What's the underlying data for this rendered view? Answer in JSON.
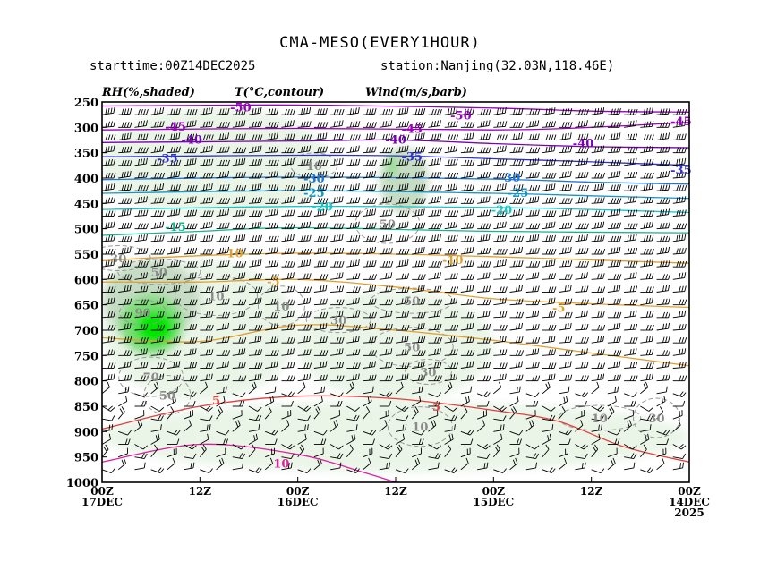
{
  "header": {
    "title": "CMA-MESO(EVERY1HOUR)",
    "starttime": "starttime:00Z14DEC2025",
    "station": "station:Nanjing(32.03N,118.46E)",
    "rh_label": "RH(%,shaded)",
    "t_label": "T(°C,contour)",
    "wind_label": "Wind(m/s,barb)"
  },
  "chart_data": {
    "type": "heatmap",
    "title": "CMA-MESO(EVERY1HOUR)",
    "y_axis": {
      "label": "",
      "ticks": [
        250,
        300,
        350,
        400,
        450,
        500,
        550,
        600,
        650,
        700,
        750,
        800,
        850,
        900,
        950,
        1000
      ],
      "inverted": true,
      "ylim": [
        250,
        1000
      ]
    },
    "x_axis": {
      "label": "",
      "direction": "reversed (later times on the left)",
      "hours_range": [
        72,
        0
      ],
      "ticks": [
        {
          "hour": 72,
          "line1": "00Z",
          "line2": "17DEC",
          "line3": ""
        },
        {
          "hour": 60,
          "line1": "12Z",
          "line2": "",
          "line3": ""
        },
        {
          "hour": 48,
          "line1": "00Z",
          "line2": "16DEC",
          "line3": ""
        },
        {
          "hour": 36,
          "line1": "12Z",
          "line2": "",
          "line3": ""
        },
        {
          "hour": 24,
          "line1": "00Z",
          "line2": "15DEC",
          "line3": ""
        },
        {
          "hour": 12,
          "line1": "12Z",
          "line2": "",
          "line3": ""
        },
        {
          "hour": 0,
          "line1": "00Z",
          "line2": "14DEC",
          "line3": "2025"
        }
      ]
    },
    "rh_shading": {
      "levels": [
        30,
        50,
        70,
        90
      ],
      "colors": [
        "#eaf5e8",
        "#c6dcc4",
        "#7fdc7a",
        "#00e600"
      ],
      "regions": [
        {
          "hours": [
            72,
            0
          ],
          "p": [
            980,
            840
          ],
          "rh": 30
        },
        {
          "hours": [
            72,
            48
          ],
          "p": [
            840,
            560
          ],
          "rh": 30
        },
        {
          "hours": [
            48,
            24
          ],
          "p": [
            840,
            620
          ],
          "rh": 30
        },
        {
          "hours": [
            72,
            60
          ],
          "p": [
            720,
            560
          ],
          "rh": 50
        },
        {
          "hours": [
            70,
            62
          ],
          "p": [
            750,
            630
          ],
          "rh": 70
        },
        {
          "hours": [
            68,
            63
          ],
          "p": [
            730,
            660
          ],
          "rh": 90
        },
        {
          "hours": [
            72,
            44
          ],
          "p": [
            480,
            260
          ],
          "rh": 30
        },
        {
          "hours": [
            38,
            32
          ],
          "p": [
            470,
            340
          ],
          "rh": 50
        },
        {
          "hours": [
            37,
            36
          ],
          "p": [
            400,
            350
          ],
          "rh": 70
        }
      ]
    },
    "temperature_contours": [
      {
        "value": -50,
        "color": "#9a00c0",
        "p_by_hour": [
          [
            72,
            258
          ],
          [
            48,
            256
          ],
          [
            24,
            262
          ],
          [
            12,
            268
          ],
          [
            0,
            270
          ]
        ]
      },
      {
        "value": -45,
        "color": "#9a00c0",
        "p_by_hour": [
          [
            72,
            305
          ],
          [
            48,
            302
          ],
          [
            24,
            305
          ],
          [
            12,
            300
          ],
          [
            0,
            290
          ]
        ]
      },
      {
        "value": -40,
        "color": "#7a00b4",
        "p_by_hour": [
          [
            72,
            330
          ],
          [
            48,
            327
          ],
          [
            36,
            325
          ],
          [
            24,
            332
          ],
          [
            12,
            338
          ],
          [
            0,
            340
          ]
        ]
      },
      {
        "value": -35,
        "color": "#3030d0",
        "p_by_hour": [
          [
            72,
            358
          ],
          [
            48,
            355
          ],
          [
            36,
            356
          ],
          [
            24,
            362
          ],
          [
            12,
            368
          ],
          [
            0,
            375
          ]
        ]
      },
      {
        "value": -30,
        "color": "#1e78d8",
        "p_by_hour": [
          [
            72,
            403
          ],
          [
            48,
            398
          ],
          [
            24,
            402
          ],
          [
            12,
            408
          ],
          [
            0,
            412
          ]
        ]
      },
      {
        "value": -25,
        "color": "#1496c8",
        "p_by_hour": [
          [
            72,
            430
          ],
          [
            48,
            425
          ],
          [
            24,
            430
          ],
          [
            12,
            435
          ],
          [
            0,
            440
          ]
        ]
      },
      {
        "value": -20,
        "color": "#14c8c8",
        "p_by_hour": [
          [
            72,
            462
          ],
          [
            48,
            456
          ],
          [
            24,
            458
          ],
          [
            12,
            462
          ],
          [
            0,
            468
          ]
        ]
      },
      {
        "value": -15,
        "color": "#14b48c",
        "p_by_hour": [
          [
            72,
            513
          ],
          [
            60,
            505
          ],
          [
            48,
            498
          ],
          [
            24,
            505
          ],
          [
            0,
            508
          ]
        ]
      },
      {
        "value": -10,
        "color": "#e0a030",
        "p_by_hour": [
          [
            72,
            563
          ],
          [
            60,
            553
          ],
          [
            48,
            548
          ],
          [
            36,
            550
          ],
          [
            24,
            555
          ],
          [
            0,
            568
          ]
        ]
      },
      {
        "value": -5,
        "color": "#e0a030",
        "p_by_hour": [
          [
            72,
            605
          ],
          [
            60,
            605
          ],
          [
            48,
            600
          ],
          [
            36,
            615
          ],
          [
            24,
            638
          ],
          [
            12,
            648
          ],
          [
            0,
            655
          ]
        ]
      },
      {
        "value": 0,
        "color": "#e0a030",
        "p_by_hour": [
          [
            72,
            715
          ],
          [
            60,
            722
          ],
          [
            48,
            690
          ],
          [
            36,
            700
          ],
          [
            24,
            720
          ],
          [
            12,
            745
          ],
          [
            0,
            770
          ]
        ]
      },
      {
        "value": 5,
        "color": "#e04040",
        "p_by_hour": [
          [
            72,
            895
          ],
          [
            60,
            850
          ],
          [
            48,
            830
          ],
          [
            36,
            835
          ],
          [
            24,
            858
          ],
          [
            16,
            880
          ],
          [
            8,
            930
          ],
          [
            0,
            960
          ]
        ]
      },
      {
        "value": 10,
        "color": "#e020a0",
        "p_by_hour": [
          [
            72,
            960
          ],
          [
            60,
            925
          ],
          [
            48,
            945
          ],
          [
            40,
            980
          ],
          [
            36,
            1000
          ]
        ]
      }
    ],
    "rh_contour_labels": [
      {
        "text": "90",
        "hour": 67,
        "p": 665
      },
      {
        "text": "70",
        "hour": 66,
        "p": 792
      },
      {
        "text": "50",
        "hour": 65,
        "p": 585
      },
      {
        "text": "50",
        "hour": 64,
        "p": 828
      },
      {
        "text": "30",
        "hour": 70,
        "p": 558
      },
      {
        "text": "10",
        "hour": 58,
        "p": 632
      },
      {
        "text": "10",
        "hour": 46,
        "p": 375
      },
      {
        "text": "50",
        "hour": 37,
        "p": 490
      },
      {
        "text": "50",
        "hour": 34,
        "p": 642
      },
      {
        "text": "10",
        "hour": 50,
        "p": 652
      },
      {
        "text": "30",
        "hour": 43,
        "p": 680
      },
      {
        "text": "50",
        "hour": 34,
        "p": 733
      },
      {
        "text": "30",
        "hour": 32,
        "p": 782
      },
      {
        "text": "10",
        "hour": 33,
        "p": 890
      },
      {
        "text": "10",
        "hour": 11,
        "p": 873
      },
      {
        "text": "30",
        "hour": 4,
        "p": 873
      }
    ],
    "temperature_contour_labels": [
      {
        "text": "-50",
        "hour": 55,
        "p": 260,
        "color": "#9a00c0"
      },
      {
        "text": "-50",
        "hour": 28,
        "p": 276,
        "color": "#9a00c0"
      },
      {
        "text": "-45",
        "hour": 63,
        "p": 298,
        "color": "#9a00c0"
      },
      {
        "text": "-45",
        "hour": 34,
        "p": 302,
        "color": "#9a00c0"
      },
      {
        "text": "-45",
        "hour": 1,
        "p": 287,
        "color": "#9a00c0"
      },
      {
        "text": "-40",
        "hour": 61,
        "p": 323,
        "color": "#7a00b4"
      },
      {
        "text": "-40",
        "hour": 36,
        "p": 323,
        "color": "#7a00b4"
      },
      {
        "text": "-40",
        "hour": 13,
        "p": 330,
        "color": "#7a00b4"
      },
      {
        "text": "-35",
        "hour": 64,
        "p": 360,
        "color": "#3030d0"
      },
      {
        "text": "-35",
        "hour": 34,
        "p": 357,
        "color": "#3030d0"
      },
      {
        "text": "-35",
        "hour": 1,
        "p": 383,
        "color": "#3030d0"
      },
      {
        "text": "-30",
        "hour": 46,
        "p": 400,
        "color": "#1e78d8"
      },
      {
        "text": "-30",
        "hour": 22,
        "p": 398,
        "color": "#1e78d8"
      },
      {
        "text": "-25",
        "hour": 46,
        "p": 428,
        "color": "#1496c8"
      },
      {
        "text": "-25",
        "hour": 21,
        "p": 428,
        "color": "#1496c8"
      },
      {
        "text": "-20",
        "hour": 45,
        "p": 456,
        "color": "#14c8c8"
      },
      {
        "text": "-20",
        "hour": 23,
        "p": 462,
        "color": "#14c8c8"
      },
      {
        "text": "-15",
        "hour": 63,
        "p": 495,
        "color": "#14b48c"
      },
      {
        "text": "-10",
        "hour": 56,
        "p": 547,
        "color": "#e0a030"
      },
      {
        "text": "-10",
        "hour": 29,
        "p": 561,
        "color": "#e0a030"
      },
      {
        "text": "-5",
        "hour": 51,
        "p": 603,
        "color": "#e0a030"
      },
      {
        "text": "-5",
        "hour": 16,
        "p": 655,
        "color": "#e0a030"
      },
      {
        "text": "5",
        "hour": 58,
        "p": 838,
        "color": "#e04040"
      },
      {
        "text": "5",
        "hour": 31,
        "p": 850,
        "color": "#e04040"
      },
      {
        "text": "10",
        "hour": 50,
        "p": 962,
        "color": "#e020a0"
      }
    ],
    "wind_barb_levels": [
      275,
      300,
      325,
      350,
      375,
      400,
      425,
      450,
      475,
      500,
      525,
      550,
      575,
      600,
      625,
      650,
      675,
      700,
      725,
      750,
      775,
      800,
      825,
      850,
      875,
      900,
      925,
      950,
      975
    ],
    "wind_barb_hours": [
      72,
      70,
      68,
      66,
      64,
      62,
      60,
      58,
      56,
      54,
      52,
      50,
      48,
      46,
      44,
      42,
      40,
      38,
      36,
      34,
      32,
      30,
      28,
      26,
      24,
      22,
      20,
      18,
      16,
      14,
      12,
      10,
      8,
      6,
      4,
      2,
      0
    ],
    "grid": false
  }
}
